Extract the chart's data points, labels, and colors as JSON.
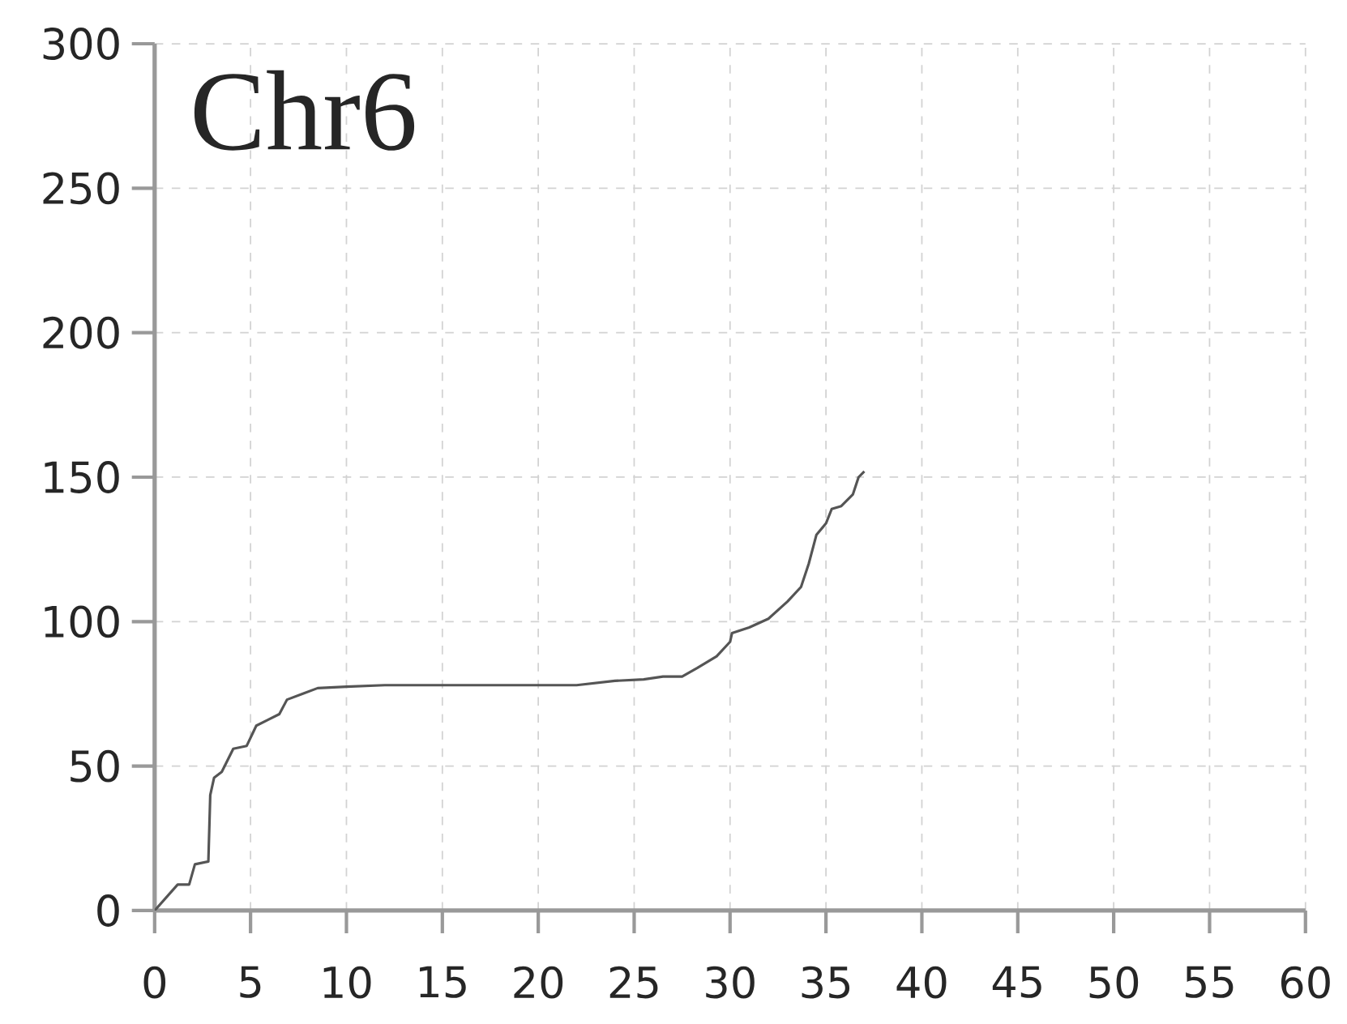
{
  "chart_data": {
    "type": "line",
    "title": "Chr6",
    "series": [
      {
        "color": "#555555",
        "x": [
          0,
          1.2,
          1.8,
          2.1,
          2.8,
          2.9,
          3.1,
          3.5,
          4.1,
          4.8,
          5.3,
          5.9,
          6.5,
          6.9,
          7.7,
          8.5,
          10,
          12,
          20,
          22,
          24,
          25.5,
          26.5,
          27.5,
          28.3,
          29.3,
          30,
          30.1,
          31,
          32,
          33,
          33.7,
          34.1,
          34.5,
          35,
          35.3,
          35.8,
          36.4,
          36.7,
          37
        ],
        "values": [
          0,
          9,
          9,
          16,
          17,
          40,
          46,
          48,
          56,
          57,
          64,
          66,
          68,
          73,
          75,
          77,
          77.5,
          78,
          78,
          78,
          79.5,
          80,
          81,
          81,
          84,
          88,
          93,
          96,
          98,
          101,
          107,
          112,
          120,
          130,
          134,
          139,
          140,
          144,
          150,
          152
        ]
      }
    ],
    "xlim": [
      0,
      60
    ],
    "ylim": [
      0,
      300
    ],
    "xticks": [
      0,
      5,
      10,
      15,
      20,
      25,
      30,
      35,
      40,
      45,
      50,
      55,
      60
    ],
    "yticks": [
      0,
      50,
      100,
      150,
      200,
      250,
      300
    ],
    "grid": true,
    "marker": "none",
    "line_style": "solid"
  }
}
